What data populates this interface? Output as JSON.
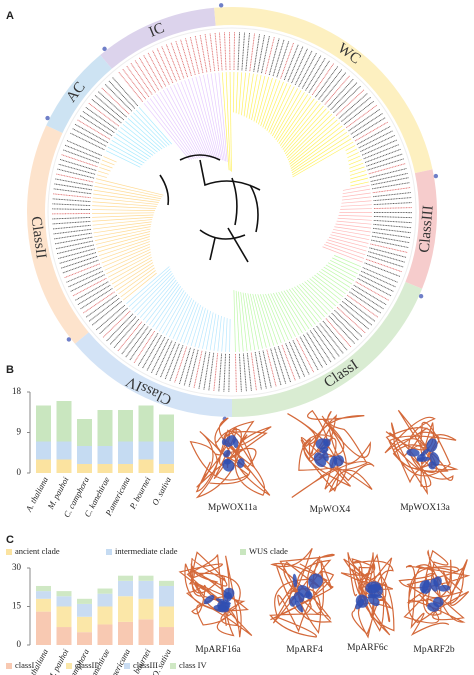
{
  "panel_labels": [
    "A",
    "B",
    "C"
  ],
  "tree": {
    "clades": [
      {
        "name": "IC",
        "color": "#dcd3ec"
      },
      {
        "name": "WC",
        "color": "#fdf0c0"
      },
      {
        "name": "ClassIII",
        "color": "#f6cccc"
      },
      {
        "name": "ClassI",
        "color": "#d9ecd2"
      },
      {
        "name": "ClassIV",
        "color": "#d3e3f6"
      },
      {
        "name": "ClassII",
        "color": "#fde3cc"
      },
      {
        "name": "AC",
        "color": "#cde3f3"
      }
    ]
  },
  "chart_data": [
    {
      "type": "bar",
      "stacked": true,
      "categories": [
        "A. thaliana",
        "M. pauhoi",
        "C. camphora",
        "C. kanehirae",
        "P.americana",
        "P. bournei",
        "O. sativa"
      ],
      "series": [
        {
          "name": "ancient clade",
          "color": "#fbe3a0",
          "values": [
            3,
            3,
            2,
            2,
            2,
            3,
            2
          ]
        },
        {
          "name": "intermediate clade",
          "color": "#c5dbf2",
          "values": [
            4,
            4,
            4,
            4,
            5,
            4,
            5
          ]
        },
        {
          "name": "WUS clade",
          "color": "#c9e6bf",
          "values": [
            8,
            9,
            6,
            8,
            7,
            8,
            6
          ]
        }
      ],
      "ylim": [
        0,
        18
      ],
      "yticks": [
        0,
        9,
        18
      ]
    },
    {
      "type": "bar",
      "stacked": true,
      "categories": [
        "A. thaliana",
        "M. pauhoi",
        "C. camphora",
        "C. kanehirae",
        "P.americana",
        "P. bournei",
        "O. sativa"
      ],
      "series": [
        {
          "name": "classI",
          "color": "#f8c9b2",
          "values": [
            13,
            7,
            5,
            8,
            9,
            10,
            7
          ]
        },
        {
          "name": "classII",
          "color": "#fbe7a8",
          "values": [
            5,
            8,
            6,
            7,
            10,
            8,
            8
          ]
        },
        {
          "name": "classIII",
          "color": "#c9dcf2",
          "values": [
            3,
            4,
            5,
            5,
            6,
            7,
            8
          ]
        },
        {
          "name": "class IV",
          "color": "#cfe8c4",
          "values": [
            2,
            2,
            2,
            2,
            2,
            2,
            2
          ]
        }
      ],
      "ylim": [
        0,
        30
      ],
      "yticks": [
        0,
        15,
        30
      ]
    }
  ],
  "structures": {
    "B": [
      "MpWOX11a",
      "MpWOX4",
      "MpWOX13a"
    ],
    "C": [
      "MpARF16a",
      "MpARF4",
      "MpARF6c",
      "MpARF2b"
    ]
  }
}
